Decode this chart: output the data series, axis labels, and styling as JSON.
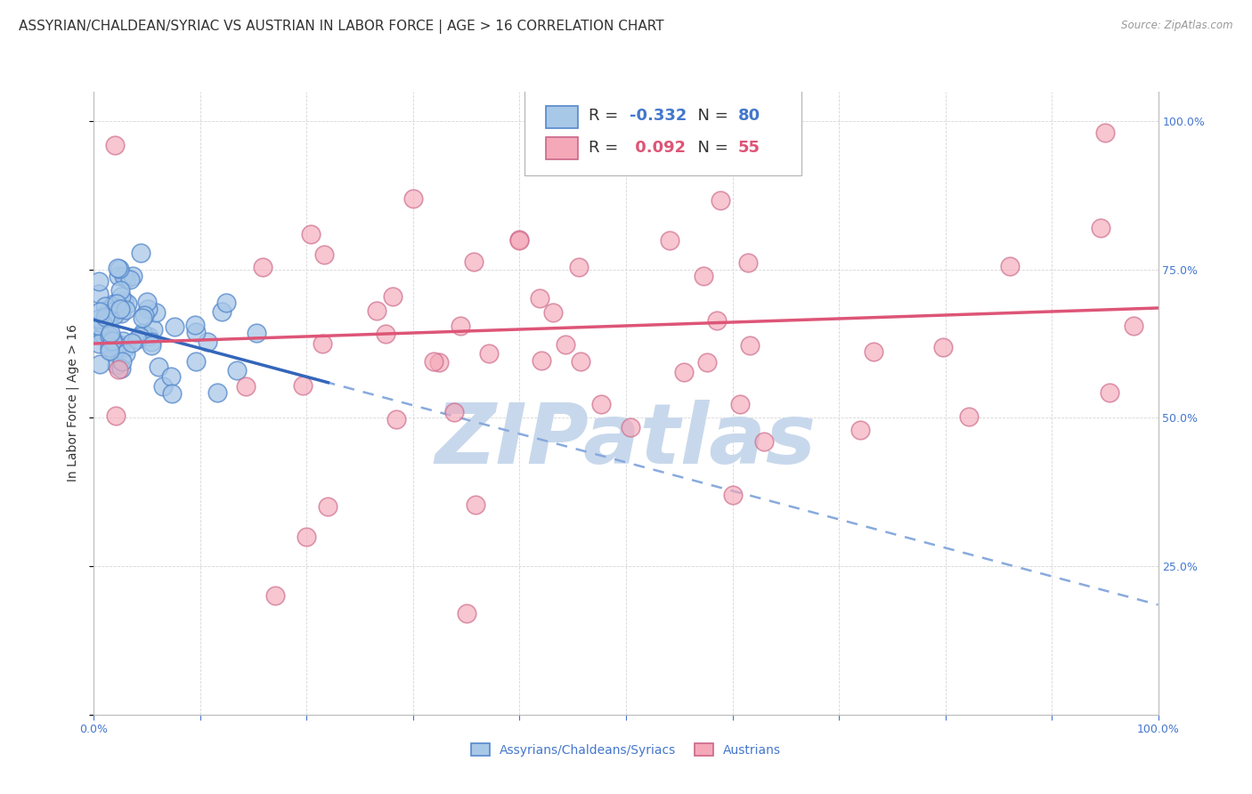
{
  "title": "ASSYRIAN/CHALDEAN/SYRIAC VS AUSTRIAN IN LABOR FORCE | AGE > 16 CORRELATION CHART",
  "source": "Source: ZipAtlas.com",
  "ylabel": "In Labor Force | Age > 16",
  "xmin": 0.0,
  "xmax": 1.0,
  "ymin": 0.0,
  "ymax": 1.05,
  "ytick_labels_right": [
    "100.0%",
    "75.0%",
    "50.0%",
    "25.0%"
  ],
  "ytick_vals_right": [
    1.0,
    0.75,
    0.5,
    0.25
  ],
  "legend_R1": "-0.332",
  "legend_N1": "80",
  "legend_R2": "0.092",
  "legend_N2": "55",
  "color_blue_fill": "#A8C8E8",
  "color_blue_edge": "#5588CC",
  "color_pink_fill": "#F4A8B8",
  "color_pink_edge": "#CC6688",
  "color_blue_solid_line": "#3366BB",
  "color_pink_solid_line": "#DD5577",
  "color_blue_dashed_line": "#88AADD",
  "watermark_text": "ZIPatlas",
  "watermark_color": "#C8D8EC",
  "grid_color": "#CCCCCC",
  "background_color": "#FFFFFF",
  "title_fontsize": 11,
  "axis_label_fontsize": 10,
  "tick_fontsize": 9,
  "legend_fontsize": 13,
  "blue_dot_seed": 7,
  "pink_dot_seed": 12
}
